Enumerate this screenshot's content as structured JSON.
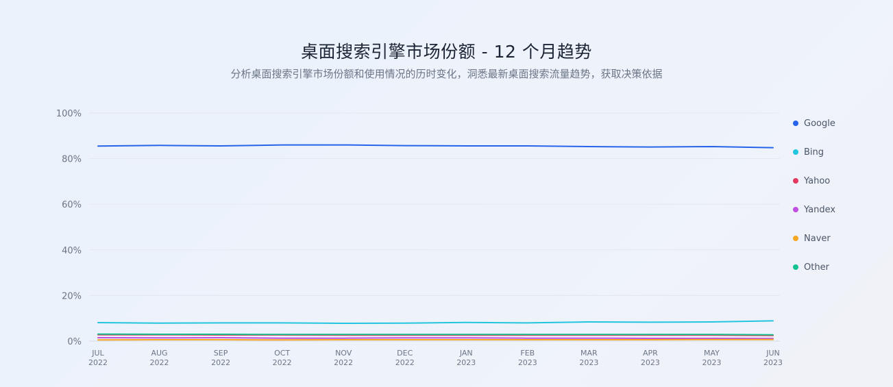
{
  "header": {
    "title": "桌面搜索引擎市场份额 - 12 个月趋势",
    "subtitle": "分析桌面搜索引擎市场份额和使用情况的历时变化，洞悉最新桌面搜索流量趋势，获取决策依据"
  },
  "chart_data": {
    "type": "line",
    "title": "桌面搜索引擎市场份额 - 12 个月趋势",
    "subtitle": "分析桌面搜索引擎市场份额和使用情况的历时变化，洞悉最新桌面搜索流量趋势，获取决策依据",
    "xlabel": "",
    "ylabel": "",
    "ylim": [
      0,
      100
    ],
    "y_ticks": [
      "0%",
      "20%",
      "40%",
      "60%",
      "80%",
      "100%"
    ],
    "y_tick_values": [
      0,
      20,
      40,
      60,
      80,
      100
    ],
    "grid": true,
    "legend_position": "right",
    "x": [
      [
        "JUL",
        "2022"
      ],
      [
        "AUG",
        "2022"
      ],
      [
        "SEP",
        "2022"
      ],
      [
        "OCT",
        "2022"
      ],
      [
        "NOV",
        "2022"
      ],
      [
        "DEC",
        "2022"
      ],
      [
        "JAN",
        "2023"
      ],
      [
        "FEB",
        "2023"
      ],
      [
        "MAR",
        "2023"
      ],
      [
        "APR",
        "2023"
      ],
      [
        "MAY",
        "2023"
      ],
      [
        "JUN",
        "2023"
      ]
    ],
    "series": [
      {
        "name": "Google",
        "color": "#2563eb",
        "values": [
          85.5,
          85.8,
          85.6,
          86.0,
          86.0,
          85.7,
          85.6,
          85.6,
          85.3,
          85.1,
          85.3,
          84.8
        ]
      },
      {
        "name": "Bing",
        "color": "#22c5e0",
        "values": [
          8.1,
          7.9,
          8.0,
          8.0,
          7.8,
          7.9,
          8.2,
          8.0,
          8.4,
          8.3,
          8.4,
          8.9
        ]
      },
      {
        "name": "Yahoo",
        "color": "#e5375f",
        "values": [
          2.8,
          2.8,
          2.7,
          2.7,
          2.6,
          2.6,
          2.6,
          2.6,
          2.6,
          2.6,
          2.6,
          2.5
        ]
      },
      {
        "name": "Yandex",
        "color": "#c04ee0",
        "values": [
          1.5,
          1.4,
          1.5,
          1.3,
          1.3,
          1.4,
          1.4,
          1.3,
          1.3,
          1.2,
          1.2,
          1.1
        ]
      },
      {
        "name": "Naver",
        "color": "#f5a623",
        "values": [
          0.5,
          0.6,
          0.6,
          0.5,
          0.6,
          0.6,
          0.6,
          0.6,
          0.6,
          0.6,
          0.7,
          0.7
        ]
      },
      {
        "name": "Other",
        "color": "#14c28f",
        "values": [
          3.1,
          3.0,
          3.0,
          2.9,
          2.9,
          2.9,
          2.9,
          2.9,
          2.9,
          2.9,
          2.9,
          2.8
        ]
      }
    ]
  }
}
